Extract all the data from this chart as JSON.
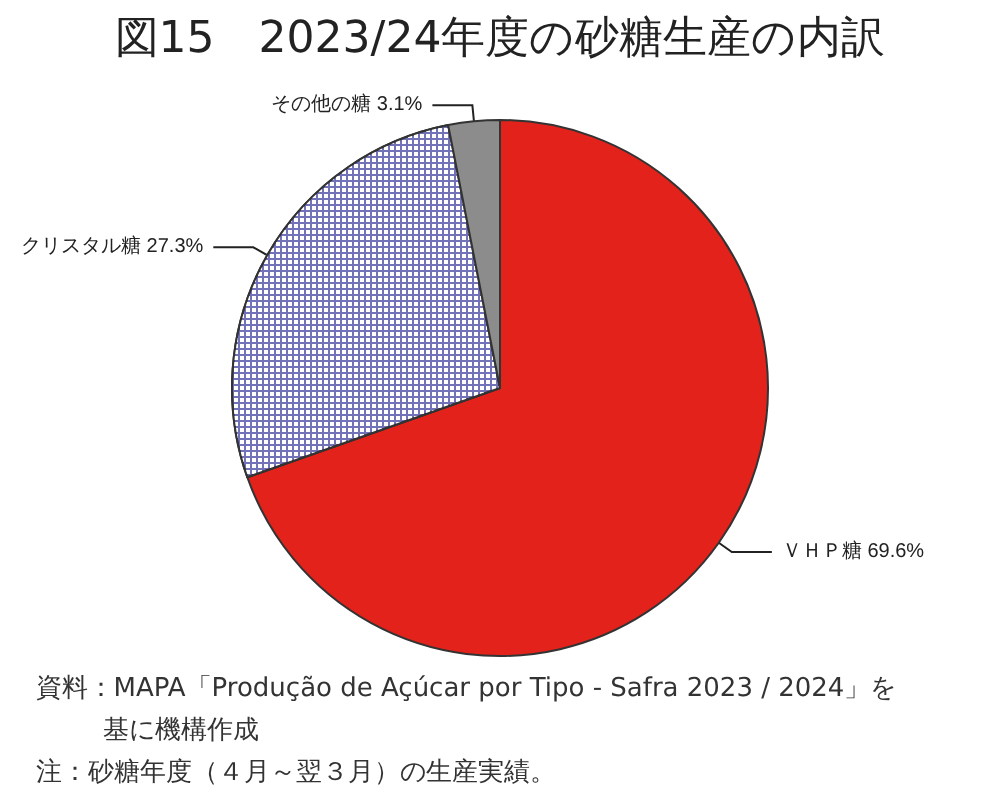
{
  "chart_data": {
    "type": "pie",
    "title": "図15　2023/24年度の砂糖生産の内訳",
    "categories": [
      "ＶＨＰ糖",
      "クリスタル糖",
      "その他の糖"
    ],
    "values": [
      69.6,
      27.3,
      3.1
    ],
    "value_labels": [
      "69.6%",
      "27.3%",
      "3.1%"
    ],
    "colors": [
      "#e3231b",
      "#7272b8",
      "#8c8c8c"
    ],
    "annotations": [
      "資料：MAPA「Produção de Açúcar por Tipo - Safra 2023 / 2024」を基に機構作成",
      "注：砂糖年度（４月～翌３月）の生産実績。"
    ]
  }
}
